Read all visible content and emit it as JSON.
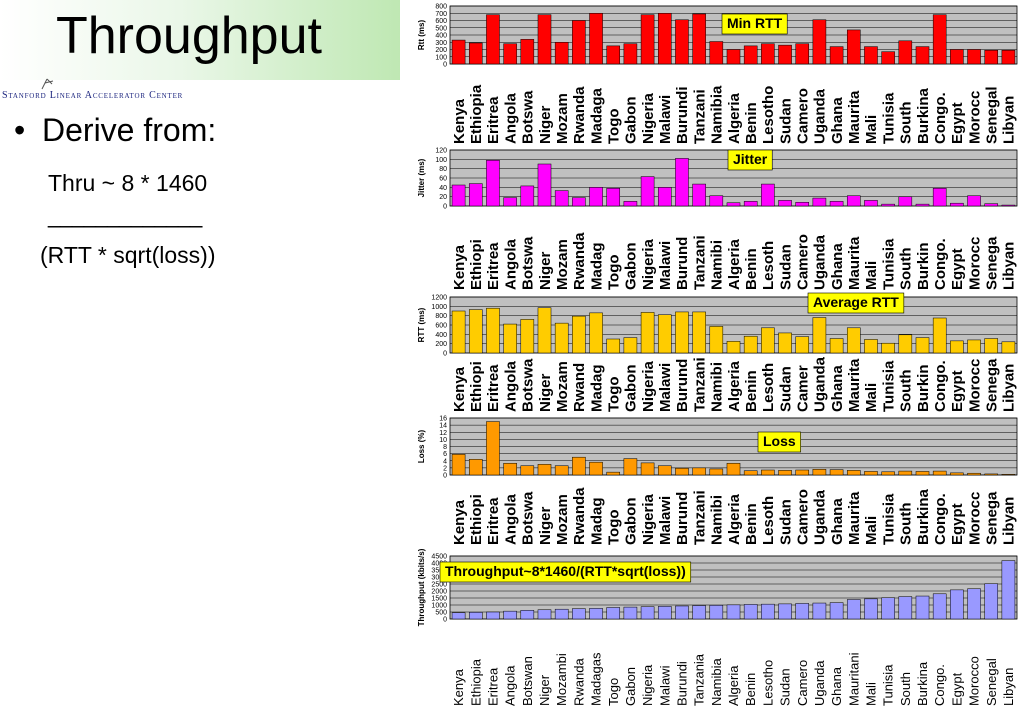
{
  "slide": {
    "title": "Throughput",
    "org": "Stanford Linear Accelerator Center",
    "bullet": "Derive from:",
    "formula_line1": "Thru ~ 8 * 1460",
    "formula_line2": "_____________",
    "formula_line3": "(RTT * sqrt(loss))"
  },
  "chart_data": [
    {
      "type": "bar",
      "title": "Min RTT",
      "ylabel": "Rtt (ms)",
      "ylim": [
        0,
        800
      ],
      "yticks": [
        0,
        100,
        200,
        300,
        400,
        500,
        600,
        700,
        800
      ],
      "color": "#ff0000",
      "grid": true,
      "categories": [
        "Kenya",
        "Ethiopia",
        "Eritrea",
        "Angola",
        "Botswa",
        "Niger",
        "Mozam",
        "Rwanda",
        "Madaga",
        "Togo",
        "Gabon",
        "Nigeria",
        "Malawi",
        "Burundi",
        "Tanzani",
        "Namibia",
        "Algeria",
        "Benin",
        "Lesotho",
        "Sudan",
        "Camero",
        "Uganda",
        "Ghana",
        "Maurita",
        "Mali",
        "Tunisia",
        "South",
        "Burkina",
        "Congo.",
        "Egypt",
        "Morocc",
        "Senegal",
        "Libyan"
      ],
      "values": [
        330,
        290,
        680,
        280,
        340,
        680,
        300,
        600,
        700,
        250,
        280,
        680,
        700,
        610,
        690,
        310,
        200,
        250,
        280,
        260,
        280,
        610,
        240,
        470,
        240,
        170,
        320,
        240,
        680,
        200,
        200,
        190,
        190
      ]
    },
    {
      "type": "bar",
      "title": "Jitter",
      "ylabel": "Jitter (ms)",
      "ylim": [
        0,
        120
      ],
      "yticks": [
        0,
        20,
        40,
        60,
        80,
        100,
        120
      ],
      "color": "#ff00ff",
      "grid": true,
      "categories": [
        "Kenya",
        "Ethiopi",
        "Eritrea",
        "Angola",
        "Botswa",
        "Niger",
        "Mozam",
        "Rwanda",
        "Madag",
        "Togo",
        "Gabon",
        "Nigeria",
        "Malawi",
        "Burund",
        "Tanzani",
        "Namibi",
        "Algeria",
        "Benin",
        "Lesoth",
        "Sudan",
        "Camero",
        "Uganda",
        "Ghana",
        "Maurita",
        "Mali",
        "Tunisia",
        "South",
        "Burkin",
        "Congo.",
        "Egypt",
        "Morocc",
        "Senega",
        "Libyan"
      ],
      "values": [
        45,
        48,
        98,
        18,
        43,
        90,
        33,
        18,
        40,
        38,
        10,
        63,
        40,
        102,
        47,
        22,
        7,
        10,
        47,
        12,
        8,
        17,
        10,
        22,
        12,
        4,
        20,
        4,
        38,
        6,
        22,
        5,
        2
      ]
    },
    {
      "type": "bar",
      "title": "Average RTT",
      "ylabel": "RTT (ms)",
      "ylim": [
        0,
        1200
      ],
      "yticks": [
        0,
        200,
        400,
        600,
        800,
        1000,
        1200
      ],
      "color": "#ffcc00",
      "grid": true,
      "categories": [
        "Kenya",
        "Ethiopi",
        "Eritrea",
        "Angola",
        "Botswa",
        "Niger",
        "Mozam",
        "Rwand",
        "Madag",
        "Togo",
        "Gabon",
        "Nigeria",
        "Malawi",
        "Burund",
        "Tanzani",
        "Namibi",
        "Algeria",
        "Benin",
        "Lesoth",
        "Sudan",
        "Camer",
        "Uganda",
        "Ghana",
        "Maurita",
        "Mali",
        "Tunisia",
        "South",
        "Burkin",
        "Congo.",
        "Egypt",
        "Morocc",
        "Senega",
        "Libyan"
      ],
      "values": [
        900,
        930,
        960,
        620,
        720,
        970,
        640,
        790,
        860,
        300,
        330,
        870,
        820,
        880,
        880,
        570,
        250,
        360,
        540,
        430,
        350,
        760,
        310,
        540,
        290,
        210,
        390,
        330,
        750,
        260,
        280,
        310,
        240
      ]
    },
    {
      "type": "bar",
      "title": "Loss",
      "ylabel": "Loss (%)",
      "ylim": [
        0,
        16
      ],
      "yticks": [
        0,
        2,
        4,
        6,
        8,
        10,
        12,
        14,
        16
      ],
      "color": "#ff9900",
      "grid": true,
      "categories": [
        "Kenya",
        "Ethiopi",
        "Eritrea",
        "Angola",
        "Botswa",
        "Niger",
        "Mozam",
        "Rwanda",
        "Madag",
        "Togo",
        "Gabon",
        "Nigeria",
        "Malawi",
        "Burund",
        "Tanzani",
        "Namibi",
        "Algeria",
        "Benin",
        "Lesoth",
        "Sudan",
        "Camero",
        "Uganda",
        "Ghana",
        "Maurita",
        "Mali",
        "Tunisia",
        "South",
        "Burkina",
        "Congo.",
        "Egypt",
        "Morocc",
        "Senega",
        "Libyan"
      ],
      "values": [
        5.8,
        4.4,
        15,
        3.3,
        2.6,
        3.0,
        2.6,
        5.0,
        3.6,
        0.8,
        4.6,
        3.4,
        2.6,
        1.9,
        2.0,
        1.7,
        3.3,
        1.2,
        1.4,
        1.3,
        1.4,
        1.6,
        1.5,
        1.3,
        1.0,
        0.9,
        1.1,
        1.0,
        1.1,
        0.6,
        0.5,
        0.3,
        0.2
      ]
    },
    {
      "type": "bar",
      "title": "Throughput~8*1460/(RTT*sqrt(loss))",
      "ylabel": "Throughput (kbits/s)",
      "ylim": [
        0,
        4500
      ],
      "yticks": [
        0,
        500,
        1000,
        1500,
        2000,
        2500,
        3000,
        3500,
        4000,
        4500
      ],
      "color": "#9999ff",
      "grid": true,
      "categories": [
        "Kenya",
        "Ethiopia",
        "Eritrea",
        "Angola",
        "Botswan",
        "Niger",
        "Mozambi",
        "Rwanda",
        "Madagas",
        "Togo",
        "Gabon",
        "Nigeria",
        "Malawi",
        "Burundi",
        "Tanzania",
        "Namibia",
        "Algeria",
        "Benin",
        "Lesotho",
        "Sudan",
        "Camero",
        "Uganda",
        "Ghana",
        "Mauritani",
        "Mali",
        "Tunisia",
        "South",
        "Burkina",
        "Congo.",
        "Egypt",
        "Morocco",
        "Senegal",
        "Libyan"
      ],
      "values": [
        450,
        480,
        500,
        560,
        620,
        660,
        700,
        740,
        760,
        820,
        850,
        880,
        900,
        930,
        960,
        980,
        1010,
        1040,
        1060,
        1080,
        1110,
        1140,
        1170,
        1390,
        1440,
        1520,
        1600,
        1640,
        1800,
        2080,
        2160,
        2520,
        4170
      ]
    }
  ]
}
